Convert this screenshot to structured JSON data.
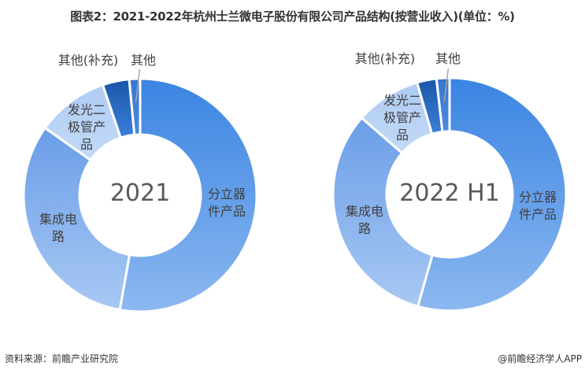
{
  "title": "图表2：2021-2022年杭州士兰微电子股份有限公司产品结构(按营业收入)(单位：%)",
  "footer": {
    "source": "资料来源：前瞻产业研究院",
    "credit": "@前瞻经济学人APP"
  },
  "watermark": "前瞻产业研究院",
  "chart_data": [
    {
      "type": "pie",
      "subtype": "donut",
      "title": "2021",
      "center_label": "2021",
      "categories": [
        "分立器件产品",
        "集成电路",
        "发光二极管产品",
        "其他(补充)",
        "其他"
      ],
      "values": [
        52.8,
        32.0,
        10.0,
        3.7,
        1.5
      ],
      "colors": [
        "#4A8EE6",
        "#7DAEEE",
        "#B5D1F5",
        "#2A67C0",
        "#3F7ED6"
      ]
    },
    {
      "type": "pie",
      "subtype": "donut",
      "title": "2022 H1",
      "center_label": "2022 H1",
      "categories": [
        "分立器件产品",
        "集成电路",
        "发光二极管产品",
        "其他(补充)",
        "其他"
      ],
      "values": [
        54.4,
        32.0,
        9.1,
        2.7,
        1.8
      ],
      "colors": [
        "#4A8EE6",
        "#7DAEEE",
        "#B5D1F5",
        "#2A67C0",
        "#3F7ED6"
      ]
    }
  ],
  "labels": {
    "discrete": "分立器\n件产品",
    "ic": "集成电\n路",
    "led": "发光二\n极管产\n品",
    "other_supp": "其他(补充)",
    "other": "其他"
  }
}
